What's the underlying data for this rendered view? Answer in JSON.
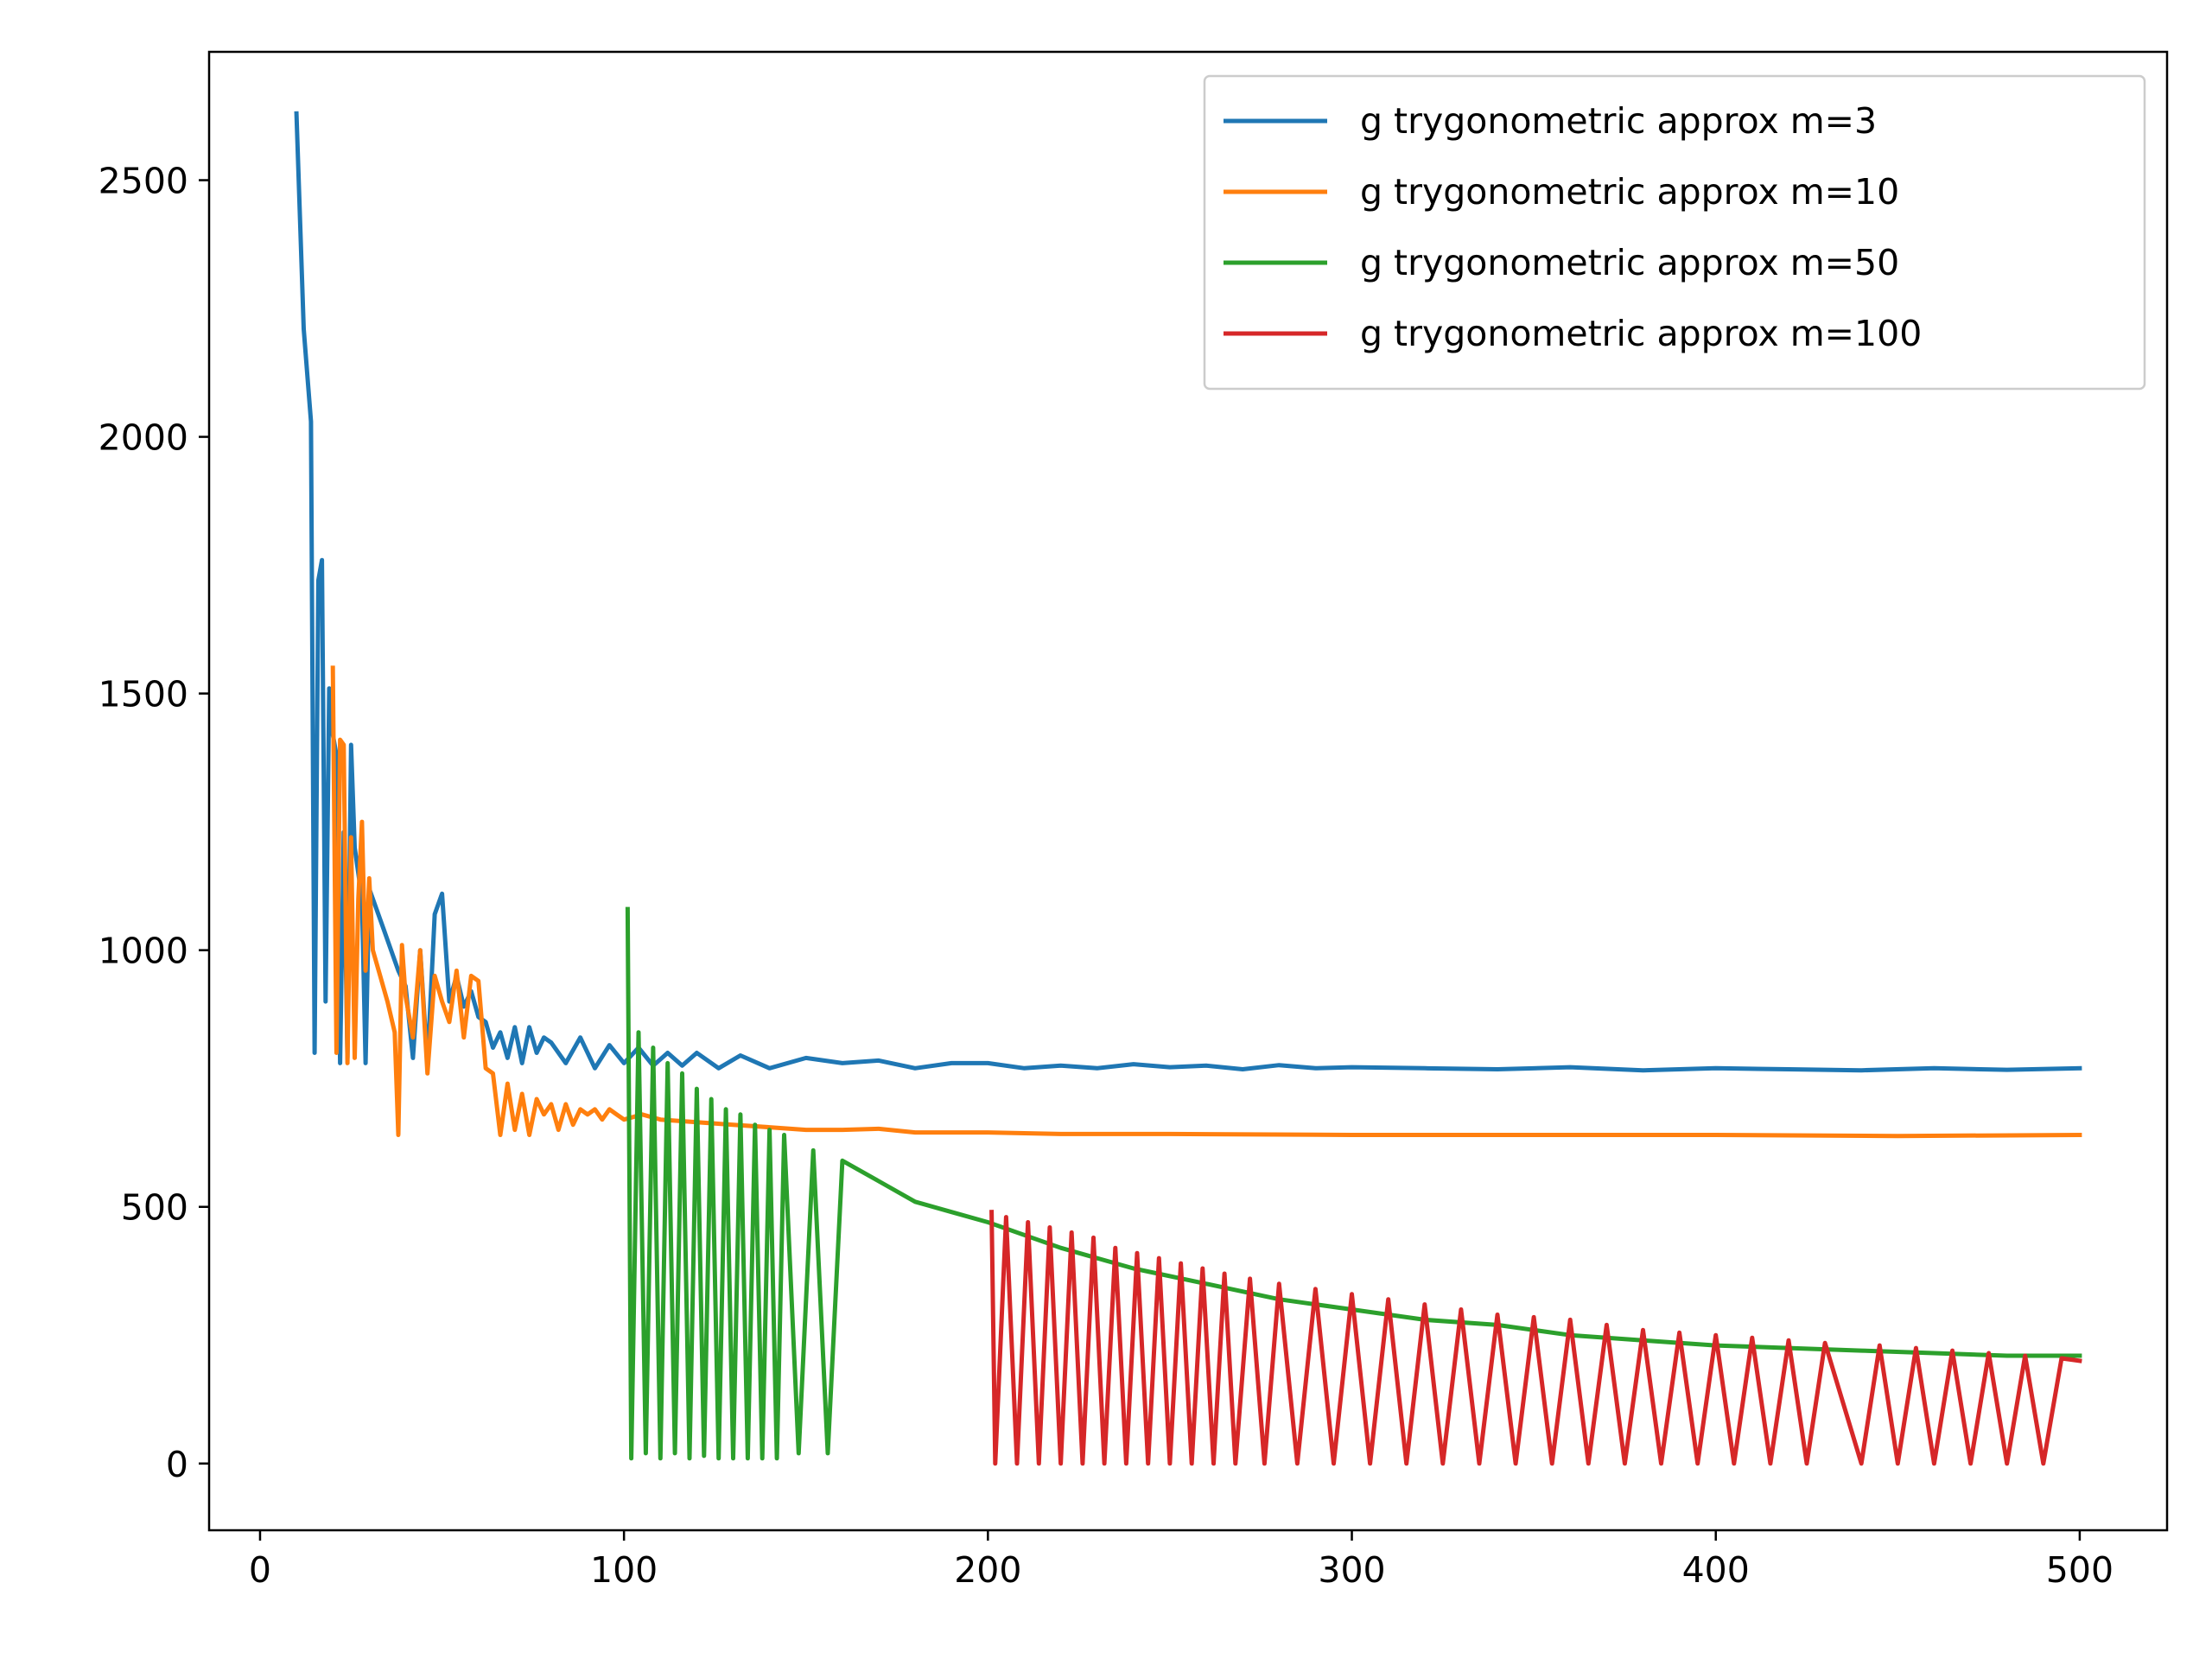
{
  "chart_data": {
    "type": "line",
    "title": "",
    "xlabel": "",
    "ylabel": "",
    "xlim": [
      -14,
      524
    ],
    "ylim": [
      -130,
      2750
    ],
    "xticks": [
      0,
      100,
      200,
      300,
      400,
      500
    ],
    "yticks": [
      0,
      500,
      1000,
      1500,
      2000,
      2500
    ],
    "grid": false,
    "legend_position": "top-right",
    "series": [
      {
        "name": "g trygonometric approx m=3",
        "color": "#1f77b4",
        "x": [
          10,
          12,
          14,
          15,
          16,
          17,
          18,
          19,
          20,
          21,
          22,
          23,
          24,
          25,
          26,
          27,
          28,
          29,
          30,
          32,
          34,
          36,
          38,
          40,
          42,
          44,
          46,
          48,
          50,
          52,
          54,
          56,
          58,
          60,
          62,
          64,
          66,
          68,
          70,
          72,
          74,
          76,
          78,
          80,
          84,
          88,
          92,
          96,
          100,
          104,
          108,
          112,
          116,
          120,
          126,
          132,
          140,
          150,
          160,
          170,
          180,
          190,
          200,
          210,
          220,
          230,
          240,
          250,
          260,
          270,
          280,
          290,
          300,
          320,
          340,
          360,
          380,
          400,
          420,
          440,
          460,
          480,
          500
        ],
        "y": [
          2630,
          2210,
          2030,
          800,
          1720,
          1760,
          900,
          1510,
          1420,
          1380,
          780,
          1230,
          790,
          1400,
          1200,
          1150,
          1100,
          780,
          1120,
          1080,
          1040,
          1000,
          960,
          930,
          790,
          1000,
          780,
          1070,
          1110,
          900,
          950,
          890,
          920,
          870,
          860,
          810,
          840,
          790,
          850,
          780,
          850,
          800,
          830,
          820,
          780,
          830,
          770,
          815,
          780,
          810,
          775,
          800,
          775,
          800,
          770,
          795,
          770,
          790,
          780,
          785,
          770,
          780,
          780,
          770,
          775,
          770,
          778,
          772,
          775,
          768,
          776,
          770,
          772,
          770,
          768,
          772,
          766,
          770,
          768,
          766,
          770,
          767,
          770
        ]
      },
      {
        "name": "g trygonometric approx m=10",
        "color": "#ff7f0e",
        "x": [
          20,
          21,
          22,
          23,
          24,
          25,
          26,
          27,
          28,
          29,
          30,
          31,
          33,
          35,
          37,
          38,
          39,
          40,
          42,
          44,
          46,
          48,
          50,
          52,
          54,
          56,
          58,
          60,
          62,
          64,
          66,
          68,
          70,
          72,
          74,
          76,
          78,
          80,
          82,
          84,
          86,
          88,
          90,
          92,
          94,
          96,
          98,
          100,
          105,
          110,
          120,
          130,
          140,
          150,
          160,
          170,
          180,
          200,
          220,
          250,
          300,
          350,
          400,
          450,
          500
        ],
        "y": [
          1550,
          800,
          1410,
          1400,
          780,
          1220,
          790,
          1100,
          1250,
          960,
          1140,
          1000,
          950,
          900,
          840,
          640,
          1010,
          910,
          830,
          1000,
          760,
          950,
          900,
          860,
          960,
          830,
          950,
          940,
          770,
          760,
          640,
          740,
          650,
          720,
          640,
          710,
          680,
          700,
          650,
          700,
          660,
          690,
          680,
          690,
          670,
          690,
          680,
          670,
          680,
          670,
          665,
          660,
          655,
          650,
          650,
          652,
          645,
          645,
          642,
          642,
          640,
          640,
          640,
          638,
          640
        ]
      },
      {
        "name": "g trygonometric approx m=50",
        "color": "#2ca02c",
        "x": [
          101,
          102,
          104,
          106,
          108,
          110,
          112,
          114,
          116,
          118,
          120,
          122,
          124,
          126,
          128,
          130,
          132,
          134,
          136,
          138,
          140,
          142,
          144,
          148,
          152,
          156,
          160,
          170,
          180,
          190,
          200,
          220,
          240,
          260,
          280,
          300,
          320,
          340,
          360,
          380,
          400,
          420,
          440,
          460,
          480,
          500
        ],
        "y": [
          1080,
          10,
          840,
          20,
          810,
          10,
          780,
          20,
          760,
          10,
          730,
          15,
          710,
          10,
          690,
          10,
          680,
          10,
          660,
          10,
          650,
          10,
          640,
          20,
          610,
          20,
          590,
          550,
          510,
          490,
          470,
          420,
          380,
          350,
          320,
          300,
          280,
          270,
          250,
          240,
          230,
          225,
          220,
          215,
          210,
          210
        ]
      },
      {
        "name": "g trygonometric approx m=100",
        "color": "#d62728",
        "x": [
          201,
          202,
          205,
          208,
          211,
          214,
          217,
          220,
          223,
          226,
          229,
          232,
          235,
          238,
          241,
          244,
          247,
          250,
          253,
          256,
          259,
          262,
          265,
          268,
          272,
          276,
          280,
          285,
          290,
          295,
          300,
          305,
          310,
          315,
          320,
          325,
          330,
          335,
          340,
          345,
          350,
          355,
          360,
          365,
          370,
          375,
          380,
          385,
          390,
          395,
          400,
          405,
          410,
          415,
          420,
          425,
          430,
          440,
          445,
          450,
          455,
          460,
          465,
          470,
          475,
          480,
          485,
          490,
          495,
          500
        ],
        "y": [
          490,
          0,
          480,
          0,
          470,
          0,
          460,
          0,
          450,
          0,
          440,
          0,
          420,
          0,
          410,
          0,
          400,
          0,
          390,
          0,
          380,
          0,
          370,
          0,
          360,
          0,
          350,
          0,
          340,
          0,
          330,
          0,
          320,
          0,
          310,
          0,
          300,
          0,
          290,
          0,
          285,
          0,
          280,
          0,
          270,
          0,
          260,
          0,
          255,
          0,
          250,
          0,
          245,
          0,
          240,
          0,
          235,
          0,
          230,
          0,
          225,
          0,
          220,
          0,
          215,
          0,
          210,
          0,
          205,
          200
        ]
      }
    ]
  }
}
